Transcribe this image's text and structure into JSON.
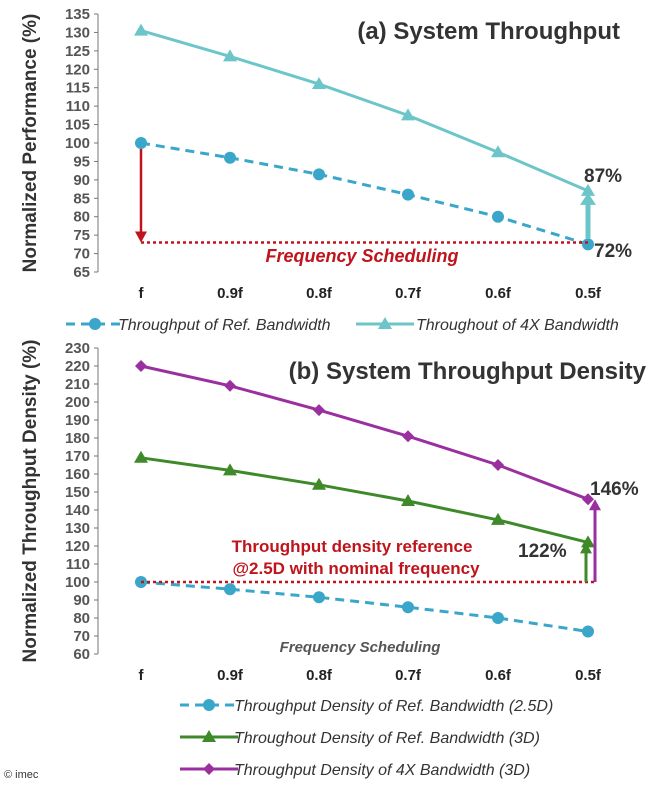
{
  "chart_data": [
    {
      "type": "line",
      "title": "(a) System Throughput",
      "ylabel": "Normalized Performance (%)",
      "xlabel": "",
      "categories": [
        "f",
        "0.9f",
        "0.8f",
        "0.7f",
        "0.6f",
        "0.5f"
      ],
      "ylim": [
        65,
        135
      ],
      "yticks": [
        65,
        70,
        75,
        80,
        85,
        90,
        95,
        100,
        105,
        110,
        115,
        120,
        125,
        130,
        135
      ],
      "grid": false,
      "legend_position": "bottom",
      "series": [
        {
          "name": "Throughput of Ref. Bandwidth",
          "values": [
            100,
            96,
            91.5,
            86,
            80,
            72.5
          ],
          "color": "#3aa6c9",
          "marker": "circle",
          "dashed": true
        },
        {
          "name": "Throughout of 4X Bandwidth",
          "values": [
            130.5,
            123.5,
            116,
            107.5,
            97.5,
            87
          ],
          "color": "#6cc6c9",
          "marker": "triangle",
          "dashed": false
        }
      ],
      "annotations": {
        "scheduling_label": "Frequency Scheduling",
        "end_labels": [
          "87%",
          "72%"
        ],
        "reference_level": 73
      }
    },
    {
      "type": "line",
      "title": "(b) System Throughput Density",
      "ylabel": "Normalized Throughput Density (%)",
      "xlabel": "",
      "categories": [
        "f",
        "0.9f",
        "0.8f",
        "0.7f",
        "0.6f",
        "0.5f"
      ],
      "ylim": [
        60,
        230
      ],
      "yticks": [
        60,
        70,
        80,
        90,
        100,
        110,
        120,
        130,
        140,
        150,
        160,
        170,
        180,
        190,
        200,
        210,
        220,
        230
      ],
      "grid": false,
      "legend_position": "bottom",
      "series": [
        {
          "name": "Throughput Density of Ref. Bandwidth (2.5D)",
          "values": [
            100,
            96,
            91.5,
            86,
            80,
            72.5
          ],
          "color": "#3aa6c9",
          "marker": "circle",
          "dashed": true
        },
        {
          "name": "Throughout Density of Ref. Bandwidth (3D)",
          "values": [
            169,
            162,
            154,
            145,
            134.5,
            122
          ],
          "color": "#3e8a2a",
          "marker": "triangle",
          "dashed": false
        },
        {
          "name": "Throughput Density of 4X Bandwidth (3D)",
          "values": [
            220,
            209,
            195.5,
            181,
            165,
            146
          ],
          "color": "#9a2fa0",
          "marker": "diamond",
          "dashed": false
        }
      ],
      "annotations": {
        "reference_text": [
          "Throughput density reference",
          "@2.5D with nominal frequency"
        ],
        "scheduling_label": "Frequency Scheduling",
        "end_labels": [
          "146%",
          "122%"
        ],
        "reference_level": 100
      }
    }
  ],
  "footer": {
    "credit": "© imec"
  },
  "colors": {
    "red": "#c0141c",
    "axis": "#777777"
  }
}
